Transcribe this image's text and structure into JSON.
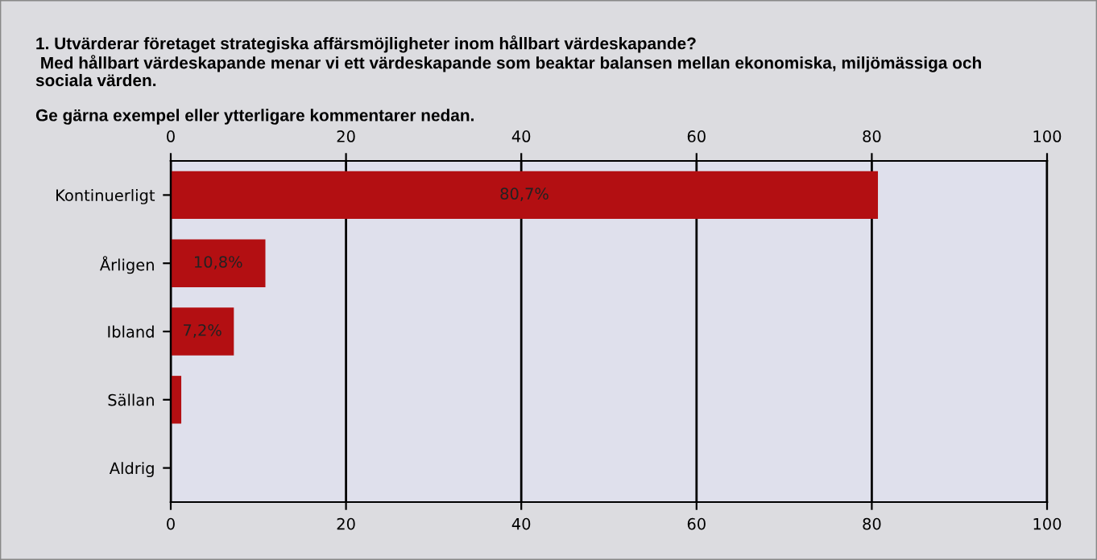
{
  "chart_data": {
    "type": "bar",
    "orientation": "horizontal",
    "title": "1. Utvärderar företaget strategiska affärsmöjligheter inom hållbart värdeskapande?\n Med hållbart värdeskapande menar vi ett värdeskapande som beaktar balansen mellan ekonomiska, miljömässiga och\nsociala värden.\n\nGe gärna exempel eller ytterligare kommentarer nedan.",
    "categories": [
      "Kontinuerligt",
      "Årligen",
      "Ibland",
      "Sällan",
      "Aldrig"
    ],
    "values": [
      80.7,
      10.8,
      7.2,
      1.2,
      0
    ],
    "value_labels": [
      "80,7%",
      "10,8%",
      "7,2%",
      null,
      null
    ],
    "color": "#b30f12",
    "xlim": [
      0,
      100
    ],
    "xticks": [
      0,
      20,
      40,
      60,
      80,
      100
    ],
    "x2lim": [
      0,
      100
    ],
    "x2ticks": [
      0,
      20,
      40,
      60,
      80,
      100
    ],
    "grid": "x",
    "legend": false
  }
}
